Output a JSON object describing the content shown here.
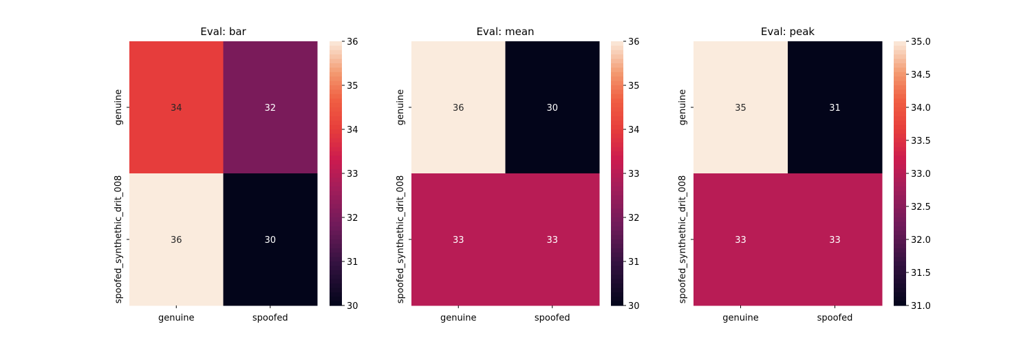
{
  "chart_data": [
    {
      "type": "heatmap",
      "title": "Eval: bar",
      "x_categories": [
        "genuine",
        "spoofed"
      ],
      "y_categories": [
        "genuine",
        "spoofed_synthethic_drit_008"
      ],
      "values": [
        [
          34,
          32
        ],
        [
          36,
          30
        ]
      ],
      "colorbar": {
        "min": 30,
        "max": 36,
        "ticks": [
          "30",
          "31",
          "32",
          "33",
          "34",
          "35",
          "36"
        ]
      },
      "colormap": "rocket"
    },
    {
      "type": "heatmap",
      "title": "Eval: mean",
      "x_categories": [
        "genuine",
        "spoofed"
      ],
      "y_categories": [
        "genuine",
        "spoofed_synthethic_drit_008"
      ],
      "values": [
        [
          36,
          30
        ],
        [
          33,
          33
        ]
      ],
      "colorbar": {
        "min": 30,
        "max": 36,
        "ticks": [
          "30",
          "31",
          "32",
          "33",
          "34",
          "35",
          "36"
        ]
      },
      "colormap": "rocket"
    },
    {
      "type": "heatmap",
      "title": "Eval: peak",
      "x_categories": [
        "genuine",
        "spoofed"
      ],
      "y_categories": [
        "genuine",
        "spoofed_synthethic_drit_008"
      ],
      "values": [
        [
          35,
          31
        ],
        [
          33,
          33
        ]
      ],
      "colorbar": {
        "min": 31,
        "max": 35,
        "ticks": [
          "31.0",
          "31.5",
          "32.0",
          "32.5",
          "33.0",
          "33.5",
          "34.0",
          "34.5",
          "35.0"
        ]
      },
      "colormap": "rocket"
    }
  ]
}
